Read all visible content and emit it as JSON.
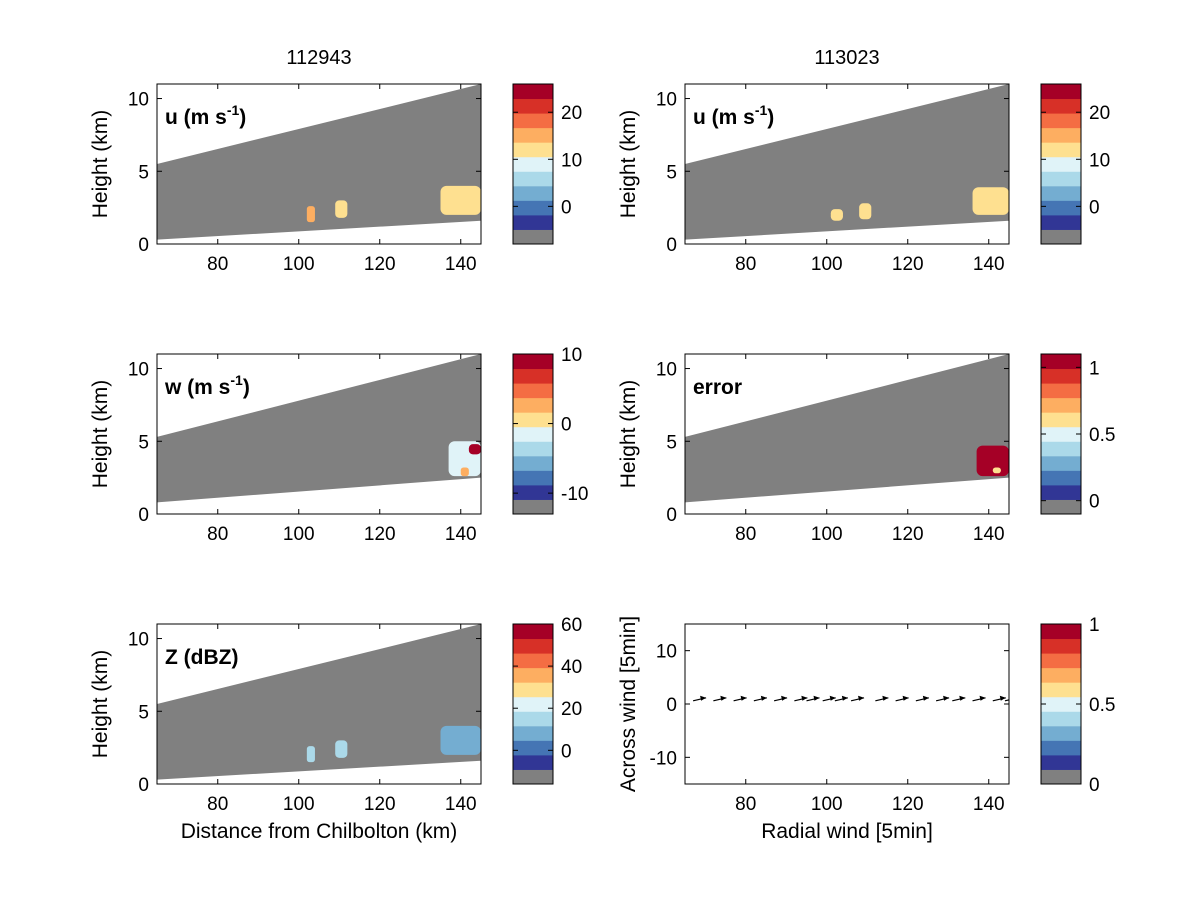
{
  "column_titles": [
    "112943",
    "113023"
  ],
  "colors": {
    "gray": "#808080",
    "palette": [
      "#313695",
      "#4575b4",
      "#74add1",
      "#abd9e9",
      "#e0f3f8",
      "#fee090",
      "#fdae61",
      "#f46d43",
      "#d73027",
      "#a50026"
    ]
  },
  "chart_data": [
    {
      "id": "u-112943",
      "type": "heatmap",
      "column": 0,
      "label_main": "u (m s",
      "label_sup": "-1",
      "label_tail": ")",
      "ylabel": "Height (km)",
      "xlabel": "",
      "xlim": [
        65,
        145
      ],
      "ylim": [
        0,
        11
      ],
      "xticks": [
        80,
        100,
        120,
        140
      ],
      "yticks": [
        0,
        5,
        10
      ],
      "coverage": {
        "bottom_at": [
          [
            65,
            0.3
          ],
          [
            145,
            1.6
          ]
        ],
        "top_at": [
          [
            65,
            5.5
          ],
          [
            145,
            11
          ]
        ]
      },
      "colorbar": {
        "vmin": -8,
        "vmax": 26,
        "ticks": [
          0,
          10,
          20
        ]
      },
      "features": [
        {
          "x": [
            102,
            104
          ],
          "y": [
            1.5,
            2.6
          ],
          "value": 14
        },
        {
          "x": [
            109,
            112
          ],
          "y": [
            1.8,
            3.0
          ],
          "value": 13
        },
        {
          "x": [
            135,
            145
          ],
          "y": [
            2.0,
            4.0
          ],
          "value": 12
        }
      ]
    },
    {
      "id": "u-113023",
      "type": "heatmap",
      "column": 1,
      "label_main": "u (m s",
      "label_sup": "-1",
      "label_tail": ")",
      "ylabel": "Height (km)",
      "xlabel": "",
      "xlim": [
        65,
        145
      ],
      "ylim": [
        0,
        11
      ],
      "xticks": [
        80,
        100,
        120,
        140
      ],
      "yticks": [
        0,
        5,
        10
      ],
      "coverage": {
        "bottom_at": [
          [
            65,
            0.3
          ],
          [
            145,
            1.6
          ]
        ],
        "top_at": [
          [
            65,
            5.5
          ],
          [
            145,
            11
          ]
        ]
      },
      "colorbar": {
        "vmin": -8,
        "vmax": 26,
        "ticks": [
          0,
          10,
          20
        ]
      },
      "features": [
        {
          "x": [
            101,
            104
          ],
          "y": [
            1.6,
            2.4
          ],
          "value": 13
        },
        {
          "x": [
            108,
            111
          ],
          "y": [
            1.7,
            2.8
          ],
          "value": 13
        },
        {
          "x": [
            136,
            145
          ],
          "y": [
            2.0,
            3.9
          ],
          "value": 12
        }
      ]
    },
    {
      "id": "w-112943",
      "type": "heatmap",
      "column": 0,
      "label_main": "w (m s",
      "label_sup": "-1",
      "label_tail": ")",
      "ylabel": "Height (km)",
      "xlabel": "",
      "xlim": [
        65,
        145
      ],
      "ylim": [
        0,
        11
      ],
      "xticks": [
        80,
        100,
        120,
        140
      ],
      "yticks": [
        0,
        5,
        10
      ],
      "coverage": {
        "bottom_at": [
          [
            65,
            0.8
          ],
          [
            145,
            2.5
          ]
        ],
        "top_at": [
          [
            65,
            5.3
          ],
          [
            145,
            11
          ]
        ]
      },
      "colorbar": {
        "vmin": -13,
        "vmax": 10,
        "ticks": [
          -10,
          0,
          10
        ]
      },
      "features": [
        {
          "x": [
            137,
            145
          ],
          "y": [
            2.6,
            5.0
          ],
          "value": -2
        },
        {
          "x": [
            142,
            145
          ],
          "y": [
            4.1,
            4.8
          ],
          "value": 9
        },
        {
          "x": [
            140,
            142
          ],
          "y": [
            2.6,
            3.2
          ],
          "value": 3
        }
      ]
    },
    {
      "id": "error-113023",
      "type": "heatmap",
      "column": 1,
      "label_main": "error",
      "label_sup": "",
      "label_tail": "",
      "ylabel": "Height (km)",
      "xlabel": "",
      "xlim": [
        65,
        145
      ],
      "ylim": [
        0,
        11
      ],
      "xticks": [
        80,
        100,
        120,
        140
      ],
      "yticks": [
        0,
        5,
        10
      ],
      "coverage": {
        "bottom_at": [
          [
            65,
            0.8
          ],
          [
            145,
            2.5
          ]
        ],
        "top_at": [
          [
            65,
            5.3
          ],
          [
            145,
            11
          ]
        ]
      },
      "colorbar": {
        "vmin": -0.1,
        "vmax": 1.1,
        "ticks": [
          0,
          0.5,
          1
        ]
      },
      "features": [
        {
          "x": [
            137,
            145
          ],
          "y": [
            2.6,
            4.7
          ],
          "value": 1.05
        },
        {
          "x": [
            141,
            143
          ],
          "y": [
            2.8,
            3.2
          ],
          "value": 0.6
        }
      ]
    },
    {
      "id": "Z-112943",
      "type": "heatmap",
      "column": 0,
      "label_main": "Z (dBZ)",
      "label_sup": "",
      "label_tail": "",
      "ylabel": "Height (km)",
      "xlabel": "Distance from Chilbolton (km)",
      "xlim": [
        65,
        145
      ],
      "ylim": [
        0,
        11
      ],
      "xticks": [
        80,
        100,
        120,
        140
      ],
      "yticks": [
        0,
        5,
        10
      ],
      "coverage": {
        "bottom_at": [
          [
            65,
            0.3
          ],
          [
            145,
            1.6
          ]
        ],
        "top_at": [
          [
            65,
            5.5
          ],
          [
            145,
            11
          ]
        ]
      },
      "colorbar": {
        "vmin": -16,
        "vmax": 60,
        "ticks": [
          0,
          20,
          40,
          60
        ]
      },
      "features": [
        {
          "x": [
            102,
            104
          ],
          "y": [
            1.5,
            2.6
          ],
          "value": 12
        },
        {
          "x": [
            109,
            112
          ],
          "y": [
            1.8,
            3.0
          ],
          "value": 12
        },
        {
          "x": [
            135,
            145
          ],
          "y": [
            2.0,
            4.0
          ],
          "value": 10
        }
      ]
    },
    {
      "id": "wind-113023",
      "type": "scatter",
      "column": 1,
      "label_main": "",
      "label_sup": "",
      "label_tail": "",
      "ylabel": "Across wind [5min]",
      "xlabel": "Radial wind [5min]",
      "xlim": [
        65,
        145
      ],
      "ylim": [
        -15,
        15
      ],
      "xticks": [
        80,
        100,
        120,
        140
      ],
      "yticks": [
        -10,
        0,
        10
      ],
      "colorbar": {
        "vmin": 0,
        "vmax": 1,
        "ticks": [
          0,
          0.5,
          1
        ]
      },
      "arrows": {
        "x": [
          67,
          72,
          77,
          82,
          87,
          92,
          95,
          99,
          102,
          106,
          112,
          117,
          122,
          127,
          131,
          136,
          141,
          144
        ],
        "y": [
          0.6,
          0.6,
          0.6,
          0.6,
          0.6,
          0.6,
          0.6,
          0.6,
          0.6,
          0.6,
          0.6,
          0.6,
          0.6,
          0.6,
          0.6,
          0.6,
          0.6,
          0.6
        ]
      }
    }
  ]
}
